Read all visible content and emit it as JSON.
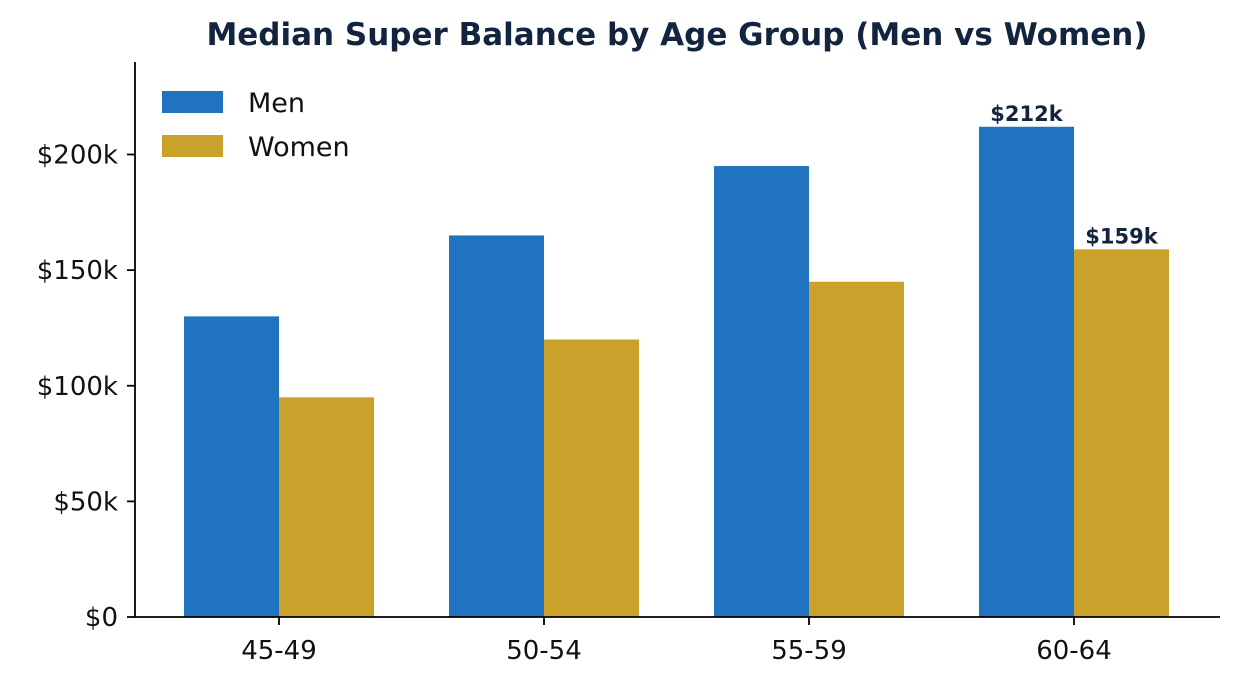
{
  "chart_data": {
    "type": "bar",
    "title": "Median Super Balance by Age Group (Men vs Women)",
    "xlabel": "",
    "ylabel": "",
    "categories": [
      "45-49",
      "50-54",
      "55-59",
      "60-64"
    ],
    "series": [
      {
        "name": "Men",
        "values": [
          130000,
          165000,
          195000,
          212000
        ],
        "color": "#1f73bf"
      },
      {
        "name": "Women",
        "values": [
          95000,
          120000,
          145000,
          159000
        ],
        "color": "#c9a12b"
      }
    ],
    "ylim": [
      0,
      240000
    ],
    "yticks": [
      0,
      50000,
      100000,
      150000,
      200000
    ],
    "ytick_labels": [
      "$0",
      "$50k",
      "$100k",
      "$150k",
      "$200k"
    ],
    "annotations": [
      {
        "category": "60-64",
        "series": "Men",
        "value": 212000,
        "text": "$212k"
      },
      {
        "category": "60-64",
        "series": "Women",
        "value": 159000,
        "text": "$159k"
      }
    ],
    "legend_position": "top-left",
    "grid": false,
    "title_color": "#13243f",
    "axis_color": "#000000"
  }
}
